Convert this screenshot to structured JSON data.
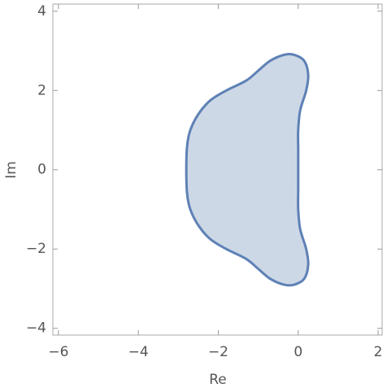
{
  "chart_data": {
    "type": "region",
    "x_label": "Re",
    "y_label": "Im",
    "x": [
      0.0,
      0.0,
      0.0,
      0.05,
      0.2,
      0.25,
      0.15,
      -0.1,
      -0.35,
      -0.7,
      -1.0,
      -1.3,
      -1.8,
      -2.2,
      -2.5,
      -2.7,
      -2.78,
      -2.8,
      -2.78,
      -2.7,
      -2.5,
      -2.2,
      -1.8,
      -1.3,
      -1.0,
      -0.7,
      -0.35,
      -0.1,
      0.15,
      0.25,
      0.2,
      0.05,
      0.0,
      0.0
    ],
    "y": [
      0.0,
      0.5,
      1.0,
      1.5,
      2.0,
      2.4,
      2.75,
      2.9,
      2.9,
      2.75,
      2.5,
      2.25,
      2.0,
      1.75,
      1.4,
      1.0,
      0.6,
      0.0,
      -0.6,
      -1.0,
      -1.4,
      -1.75,
      -2.0,
      -2.25,
      -2.5,
      -2.75,
      -2.9,
      -2.9,
      -2.75,
      -2.4,
      -2.0,
      -1.5,
      -1.0,
      -0.5
    ],
    "fill_color": "#cdd8e7",
    "line_color": "#5e81b5",
    "xlim": [
      -6.14,
      2.1
    ],
    "ylim": [
      -4.17,
      4.18
    ],
    "xticks": [
      {
        "value": -6,
        "label": "−6"
      },
      {
        "value": -4,
        "label": "−4"
      },
      {
        "value": -2,
        "label": "−2"
      },
      0,
      2
    ],
    "yticks": [
      {
        "value": -4,
        "label": "−4"
      },
      {
        "value": -2,
        "label": "−2"
      },
      0,
      2,
      4
    ]
  }
}
